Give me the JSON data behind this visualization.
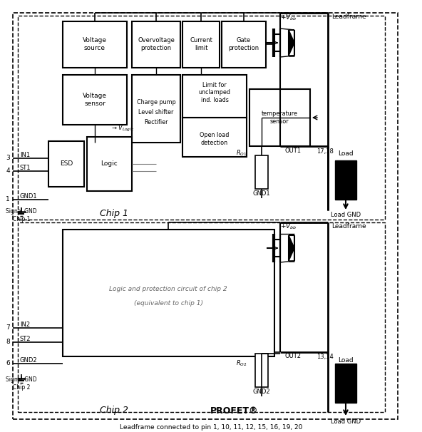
{
  "footer": "Leadframe connected to pin 1, 10, 11, 12, 15, 16, 19, 20",
  "bg_color": "#ffffff",
  "chip1_label": "Chip 1",
  "chip2_label": "Chip 2",
  "profet_label": "PROFET®"
}
